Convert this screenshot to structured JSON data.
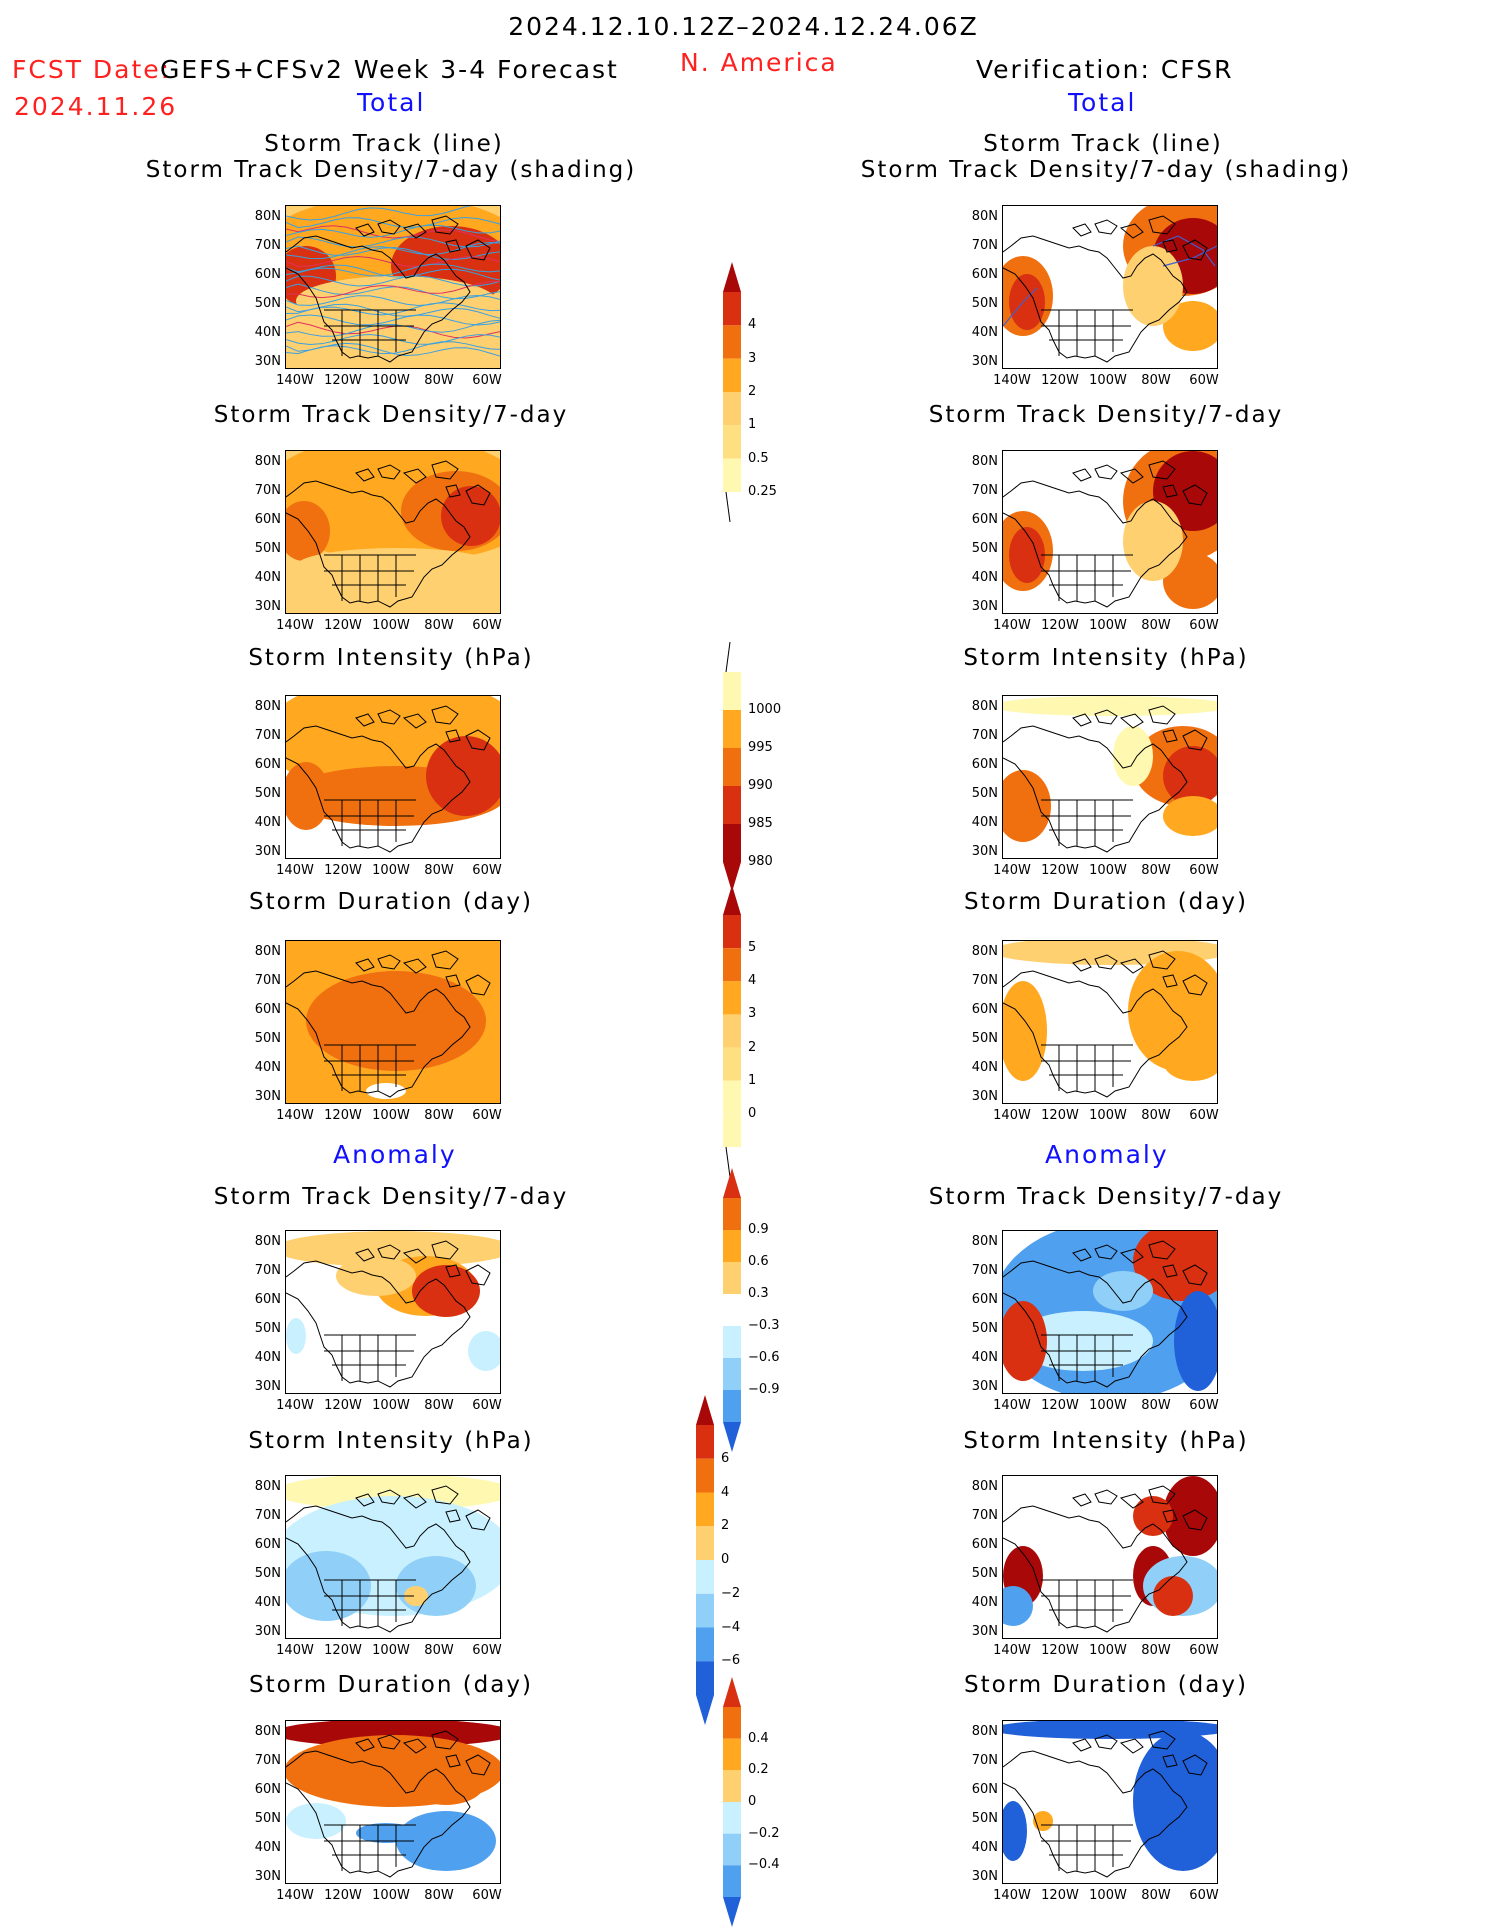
{
  "header": {
    "date_range": "2024.12.10.12Z–2024.12.24.06Z",
    "fcst_label": "FCST Date:",
    "fcst_date": "2024.11.26",
    "model": "GEFS+CFSv2 Week 3-4 Forecast",
    "region": "N. America",
    "verification": "Verification: CFSR"
  },
  "sections": {
    "total": "Total",
    "anomaly": "Anomaly"
  },
  "panel_titles": {
    "track_line": "Storm Track (line)",
    "track_shading": "Storm Track Density/7-day (shading)",
    "density": "Storm Track Density/7-day",
    "intensity": "Storm Intensity (hPa)",
    "duration": "Storm Duration (day)"
  },
  "axes": {
    "lat_ticks": [
      "80N",
      "70N",
      "60N",
      "50N",
      "40N",
      "30N"
    ],
    "lon_ticks": [
      "140W",
      "120W",
      "100W",
      "80W",
      "60W"
    ]
  },
  "colorbars": {
    "density_total": [
      "4",
      "3",
      "2",
      "1",
      "0.5",
      "0.25"
    ],
    "intensity_total": [
      "1000",
      "995",
      "990",
      "985",
      "980"
    ],
    "duration_total": [
      "5",
      "4",
      "3",
      "2",
      "1",
      "0"
    ],
    "density_anom": [
      "0.9",
      "0.6",
      "0.3",
      "−0.3",
      "−0.6",
      "−0.9"
    ],
    "intensity_anom": [
      "6",
      "4",
      "2",
      "0",
      "−2",
      "−4",
      "−6"
    ],
    "duration_anom": [
      "0.4",
      "0.2",
      "0",
      "−0.2",
      "−0.4"
    ]
  },
  "colors": {
    "title_red": "#ff2020",
    "section_blue": "#1010ff",
    "warm_scale": [
      "#fff8b0",
      "#ffd070",
      "#ffa820",
      "#f07010",
      "#d83010",
      "#a80808"
    ],
    "cool_scale": [
      "#c8f0ff",
      "#90d0f8",
      "#50a0f0",
      "#2060d8"
    ],
    "track_line": "#3aa0e0"
  }
}
